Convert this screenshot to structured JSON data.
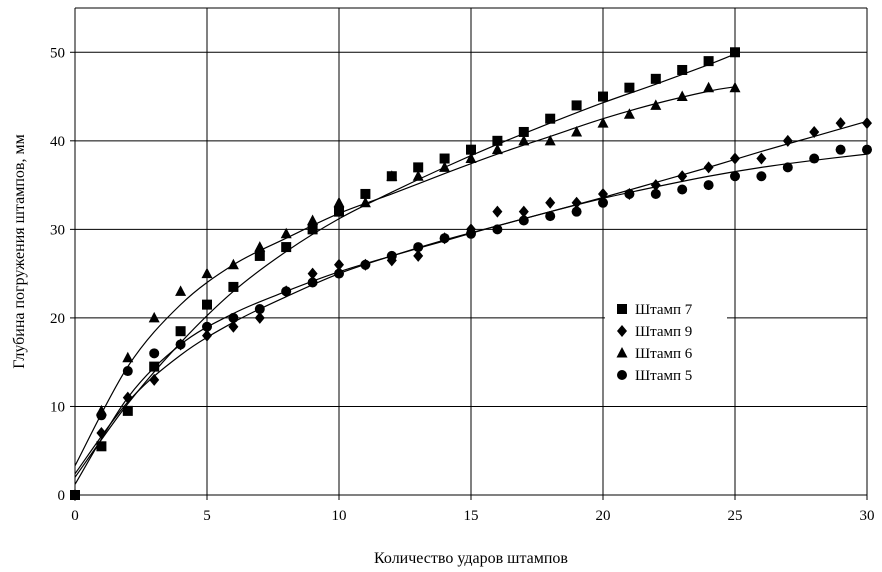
{
  "chart_data": {
    "type": "scatter",
    "title": "",
    "xlabel": "Количество ударов штампов",
    "ylabel": "Глубина погружения штампов, мм",
    "xlim": [
      0,
      30
    ],
    "ylim": [
      0,
      55
    ],
    "xticks": [
      0,
      5,
      10,
      15,
      20,
      25,
      30
    ],
    "yticks": [
      0,
      10,
      20,
      30,
      40,
      50
    ],
    "grid": true,
    "legend_position": "right",
    "trendlines": true,
    "series": [
      {
        "name": "Штамп 7",
        "marker": "square",
        "x": [
          0,
          1,
          2,
          3,
          4,
          5,
          6,
          7,
          8,
          9,
          10,
          11,
          12,
          13,
          14,
          15,
          16,
          17,
          18,
          19,
          20,
          21,
          22,
          23,
          24,
          25
        ],
        "y": [
          0,
          5.5,
          9.5,
          14.5,
          18.5,
          21.5,
          23.5,
          27,
          28,
          30,
          32,
          34,
          36,
          37,
          38,
          39,
          40,
          41,
          42.5,
          44,
          45,
          46,
          47,
          48,
          49,
          50
        ],
        "trend": [
          [
            0,
            2
          ],
          [
            2,
            10.3
          ],
          [
            4,
            17.2
          ],
          [
            6,
            23
          ],
          [
            8,
            27.5
          ],
          [
            10,
            31.2
          ],
          [
            12,
            34.2
          ],
          [
            14,
            37
          ],
          [
            16,
            39.6
          ],
          [
            18,
            42
          ],
          [
            20,
            44.3
          ],
          [
            22,
            46.4
          ],
          [
            24,
            48.6
          ],
          [
            25,
            49.8
          ]
        ]
      },
      {
        "name": "Штамп 9",
        "marker": "diamond",
        "x": [
          0,
          1,
          2,
          3,
          4,
          5,
          6,
          7,
          8,
          9,
          10,
          11,
          12,
          13,
          14,
          15,
          16,
          17,
          18,
          19,
          20,
          21,
          22,
          23,
          24,
          25,
          26,
          27,
          28,
          29,
          30
        ],
        "y": [
          0,
          7,
          11,
          13,
          17,
          18,
          19,
          20,
          23,
          25,
          26,
          26,
          26.5,
          27,
          29,
          30,
          32,
          32,
          33,
          33,
          34,
          34,
          35,
          36,
          37,
          38,
          38,
          40,
          41,
          42,
          42
        ],
        "trend": [
          [
            0,
            2.4
          ],
          [
            2,
            10.5
          ],
          [
            4,
            15.8
          ],
          [
            6,
            19.5
          ],
          [
            8,
            22.4
          ],
          [
            10,
            25
          ],
          [
            12,
            27
          ],
          [
            14,
            28.8
          ],
          [
            16,
            30.4
          ],
          [
            18,
            32
          ],
          [
            20,
            33.6
          ],
          [
            22,
            35.3
          ],
          [
            24,
            37
          ],
          [
            26,
            38.8
          ],
          [
            28,
            40.5
          ],
          [
            30,
            42.2
          ]
        ]
      },
      {
        "name": "Штамп 6",
        "marker": "triangle",
        "x": [
          1,
          2,
          3,
          4,
          5,
          6,
          7,
          8,
          9,
          10,
          11,
          12,
          13,
          14,
          15,
          16,
          17,
          18,
          19,
          20,
          21,
          22,
          23,
          24,
          25
        ],
        "y": [
          9.5,
          15.5,
          20,
          23,
          25,
          26,
          28,
          29.5,
          31,
          33,
          33,
          36,
          36,
          37,
          38,
          39,
          40,
          40,
          41,
          42,
          43,
          44,
          45,
          46,
          46
        ],
        "trend": [
          [
            0,
            3.3
          ],
          [
            2,
            14.5
          ],
          [
            4,
            21.5
          ],
          [
            6,
            26
          ],
          [
            8,
            29
          ],
          [
            10,
            31.8
          ],
          [
            12,
            34
          ],
          [
            14,
            36.3
          ],
          [
            16,
            38.5
          ],
          [
            18,
            40.5
          ],
          [
            20,
            42.5
          ],
          [
            22,
            44.2
          ],
          [
            24,
            45.6
          ],
          [
            25,
            46.1
          ]
        ]
      },
      {
        "name": "Штамп 5",
        "marker": "circle",
        "x": [
          0,
          1,
          2,
          3,
          4,
          5,
          6,
          7,
          8,
          9,
          10,
          11,
          12,
          13,
          14,
          15,
          16,
          17,
          18,
          19,
          20,
          21,
          22,
          23,
          24,
          25,
          26,
          27,
          28,
          29,
          30
        ],
        "y": [
          0,
          9,
          14,
          16,
          17,
          19,
          20,
          21,
          23,
          24,
          25,
          26,
          27,
          28,
          29,
          29.5,
          30,
          31,
          31.5,
          32,
          33,
          34,
          34,
          34.5,
          35,
          36,
          36,
          37,
          38,
          39,
          39
        ],
        "trend": [
          [
            0,
            1.2
          ],
          [
            2,
            11
          ],
          [
            4,
            17
          ],
          [
            6,
            20.5
          ],
          [
            8,
            23
          ],
          [
            10,
            25.2
          ],
          [
            12,
            27
          ],
          [
            14,
            28.7
          ],
          [
            16,
            30.4
          ],
          [
            18,
            32
          ],
          [
            20,
            33.5
          ],
          [
            22,
            34.8
          ],
          [
            24,
            36
          ],
          [
            26,
            37
          ],
          [
            28,
            37.8
          ],
          [
            30,
            38.5
          ]
        ]
      }
    ]
  }
}
